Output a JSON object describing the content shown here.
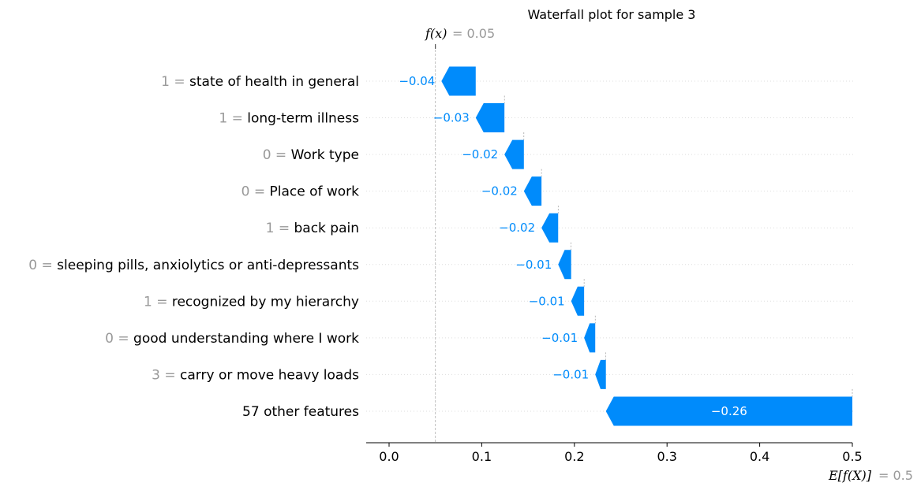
{
  "chart_data": {
    "type": "waterfall",
    "title": "Waterfall plot for sample 3",
    "fx": {
      "label": "f(x)",
      "value_text": "= 0.05",
      "value": 0.05
    },
    "expected": {
      "label": "E[f(X)]",
      "value_text": "= 0.5",
      "value": 0.5
    },
    "features": [
      {
        "value": "1",
        "name": "state of health in general",
        "contribution": -0.04,
        "label": "−0.04"
      },
      {
        "value": "1",
        "name": "long-term illness",
        "contribution": -0.03,
        "label": "−0.03"
      },
      {
        "value": "0",
        "name": "Work type",
        "contribution": -0.02,
        "label": "−0.02"
      },
      {
        "value": "0",
        "name": "Place of work",
        "contribution": -0.02,
        "label": "−0.02"
      },
      {
        "value": "1",
        "name": "back pain",
        "contribution": -0.02,
        "label": "−0.02"
      },
      {
        "value": "0",
        "name": "sleeping pills, anxiolytics or anti-depressants",
        "contribution": -0.01,
        "label": "−0.01"
      },
      {
        "value": "1",
        "name": "recognized by my hierarchy",
        "contribution": -0.01,
        "label": "−0.01"
      },
      {
        "value": "0",
        "name": "good understanding where I work",
        "contribution": -0.01,
        "label": "−0.01"
      },
      {
        "value": "3",
        "name": "carry or move heavy loads",
        "contribution": -0.01,
        "label": "−0.01"
      },
      {
        "value": "",
        "name": "57 other features",
        "contribution": -0.26,
        "label": "−0.26"
      }
    ],
    "bar_segments": [
      [
        0.0565,
        0.0935
      ],
      [
        0.0935,
        0.1245
      ],
      [
        0.1245,
        0.1455
      ],
      [
        0.1455,
        0.1645
      ],
      [
        0.1645,
        0.1825
      ],
      [
        0.1825,
        0.1965
      ],
      [
        0.1965,
        0.2105
      ],
      [
        0.2105,
        0.2225
      ],
      [
        0.2225,
        0.234
      ],
      [
        0.234,
        0.5
      ]
    ],
    "x_ticks": [
      "0.0",
      "0.1",
      "0.2",
      "0.3",
      "0.4",
      "0.5"
    ],
    "x_tick_values": [
      0.0,
      0.1,
      0.2,
      0.3,
      0.4,
      0.5
    ],
    "xlim": [
      -0.024,
      0.5
    ],
    "colors": {
      "negative": "#008bfb",
      "label_inside": "#ffffff",
      "muted": "#999999"
    }
  }
}
